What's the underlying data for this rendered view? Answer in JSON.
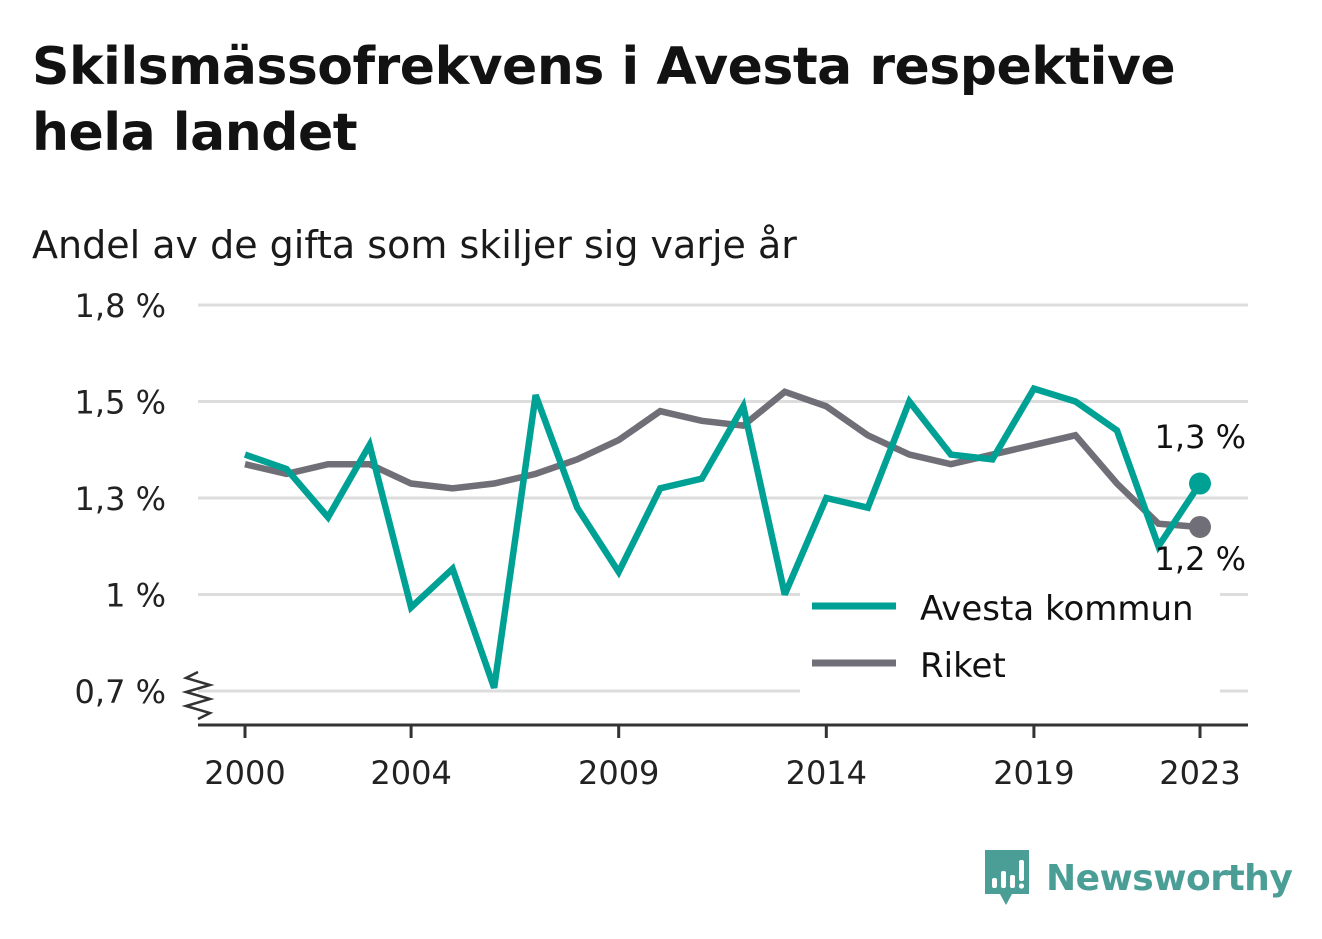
{
  "title": "Skilsmässofrekvens i Avesta respektive hela landet",
  "subtitle": "Andel av de gifta som skiljer sig varje år",
  "brand": "Newsworthy",
  "colors": {
    "avesta": "#00a195",
    "riket": "#706f77",
    "grid": "#dddddd",
    "axis": "#333333"
  },
  "chart_data": {
    "type": "line",
    "x": [
      2000,
      2001,
      2002,
      2003,
      2004,
      2005,
      2006,
      2007,
      2008,
      2009,
      2010,
      2011,
      2012,
      2013,
      2014,
      2015,
      2016,
      2017,
      2018,
      2019,
      2020,
      2021,
      2022,
      2023
    ],
    "x_ticks": [
      "2000",
      "2004",
      "2009",
      "2014",
      "2019",
      "2023"
    ],
    "y_ticks": [
      {
        "value": 0.7,
        "label": "0,7 %"
      },
      {
        "value": 1.0,
        "label": "1 %"
      },
      {
        "value": 1.3,
        "label": "1,3 %"
      },
      {
        "value": 1.5,
        "label": "1,5 %"
      },
      {
        "value": 1.8,
        "label": "1,8 %"
      }
    ],
    "y_axis_break": true,
    "grid": true,
    "legend_position": "bottom-right",
    "series": [
      {
        "name": "Avesta kommun",
        "color": "#00a195",
        "values": [
          1.39,
          1.36,
          1.24,
          1.41,
          0.96,
          1.08,
          0.71,
          1.52,
          1.27,
          1.07,
          1.32,
          1.34,
          1.49,
          1.0,
          1.3,
          1.27,
          1.5,
          1.39,
          1.38,
          1.54,
          1.5,
          1.44,
          1.15,
          1.33
        ],
        "end_label": "1,3 %"
      },
      {
        "name": "Riket",
        "color": "#706f77",
        "values": [
          1.37,
          1.35,
          1.37,
          1.37,
          1.33,
          1.32,
          1.33,
          1.35,
          1.38,
          1.42,
          1.48,
          1.46,
          1.45,
          1.53,
          1.49,
          1.43,
          1.39,
          1.37,
          1.39,
          1.41,
          1.43,
          1.33,
          1.22,
          1.21
        ],
        "end_label": "1,2 %"
      }
    ]
  }
}
